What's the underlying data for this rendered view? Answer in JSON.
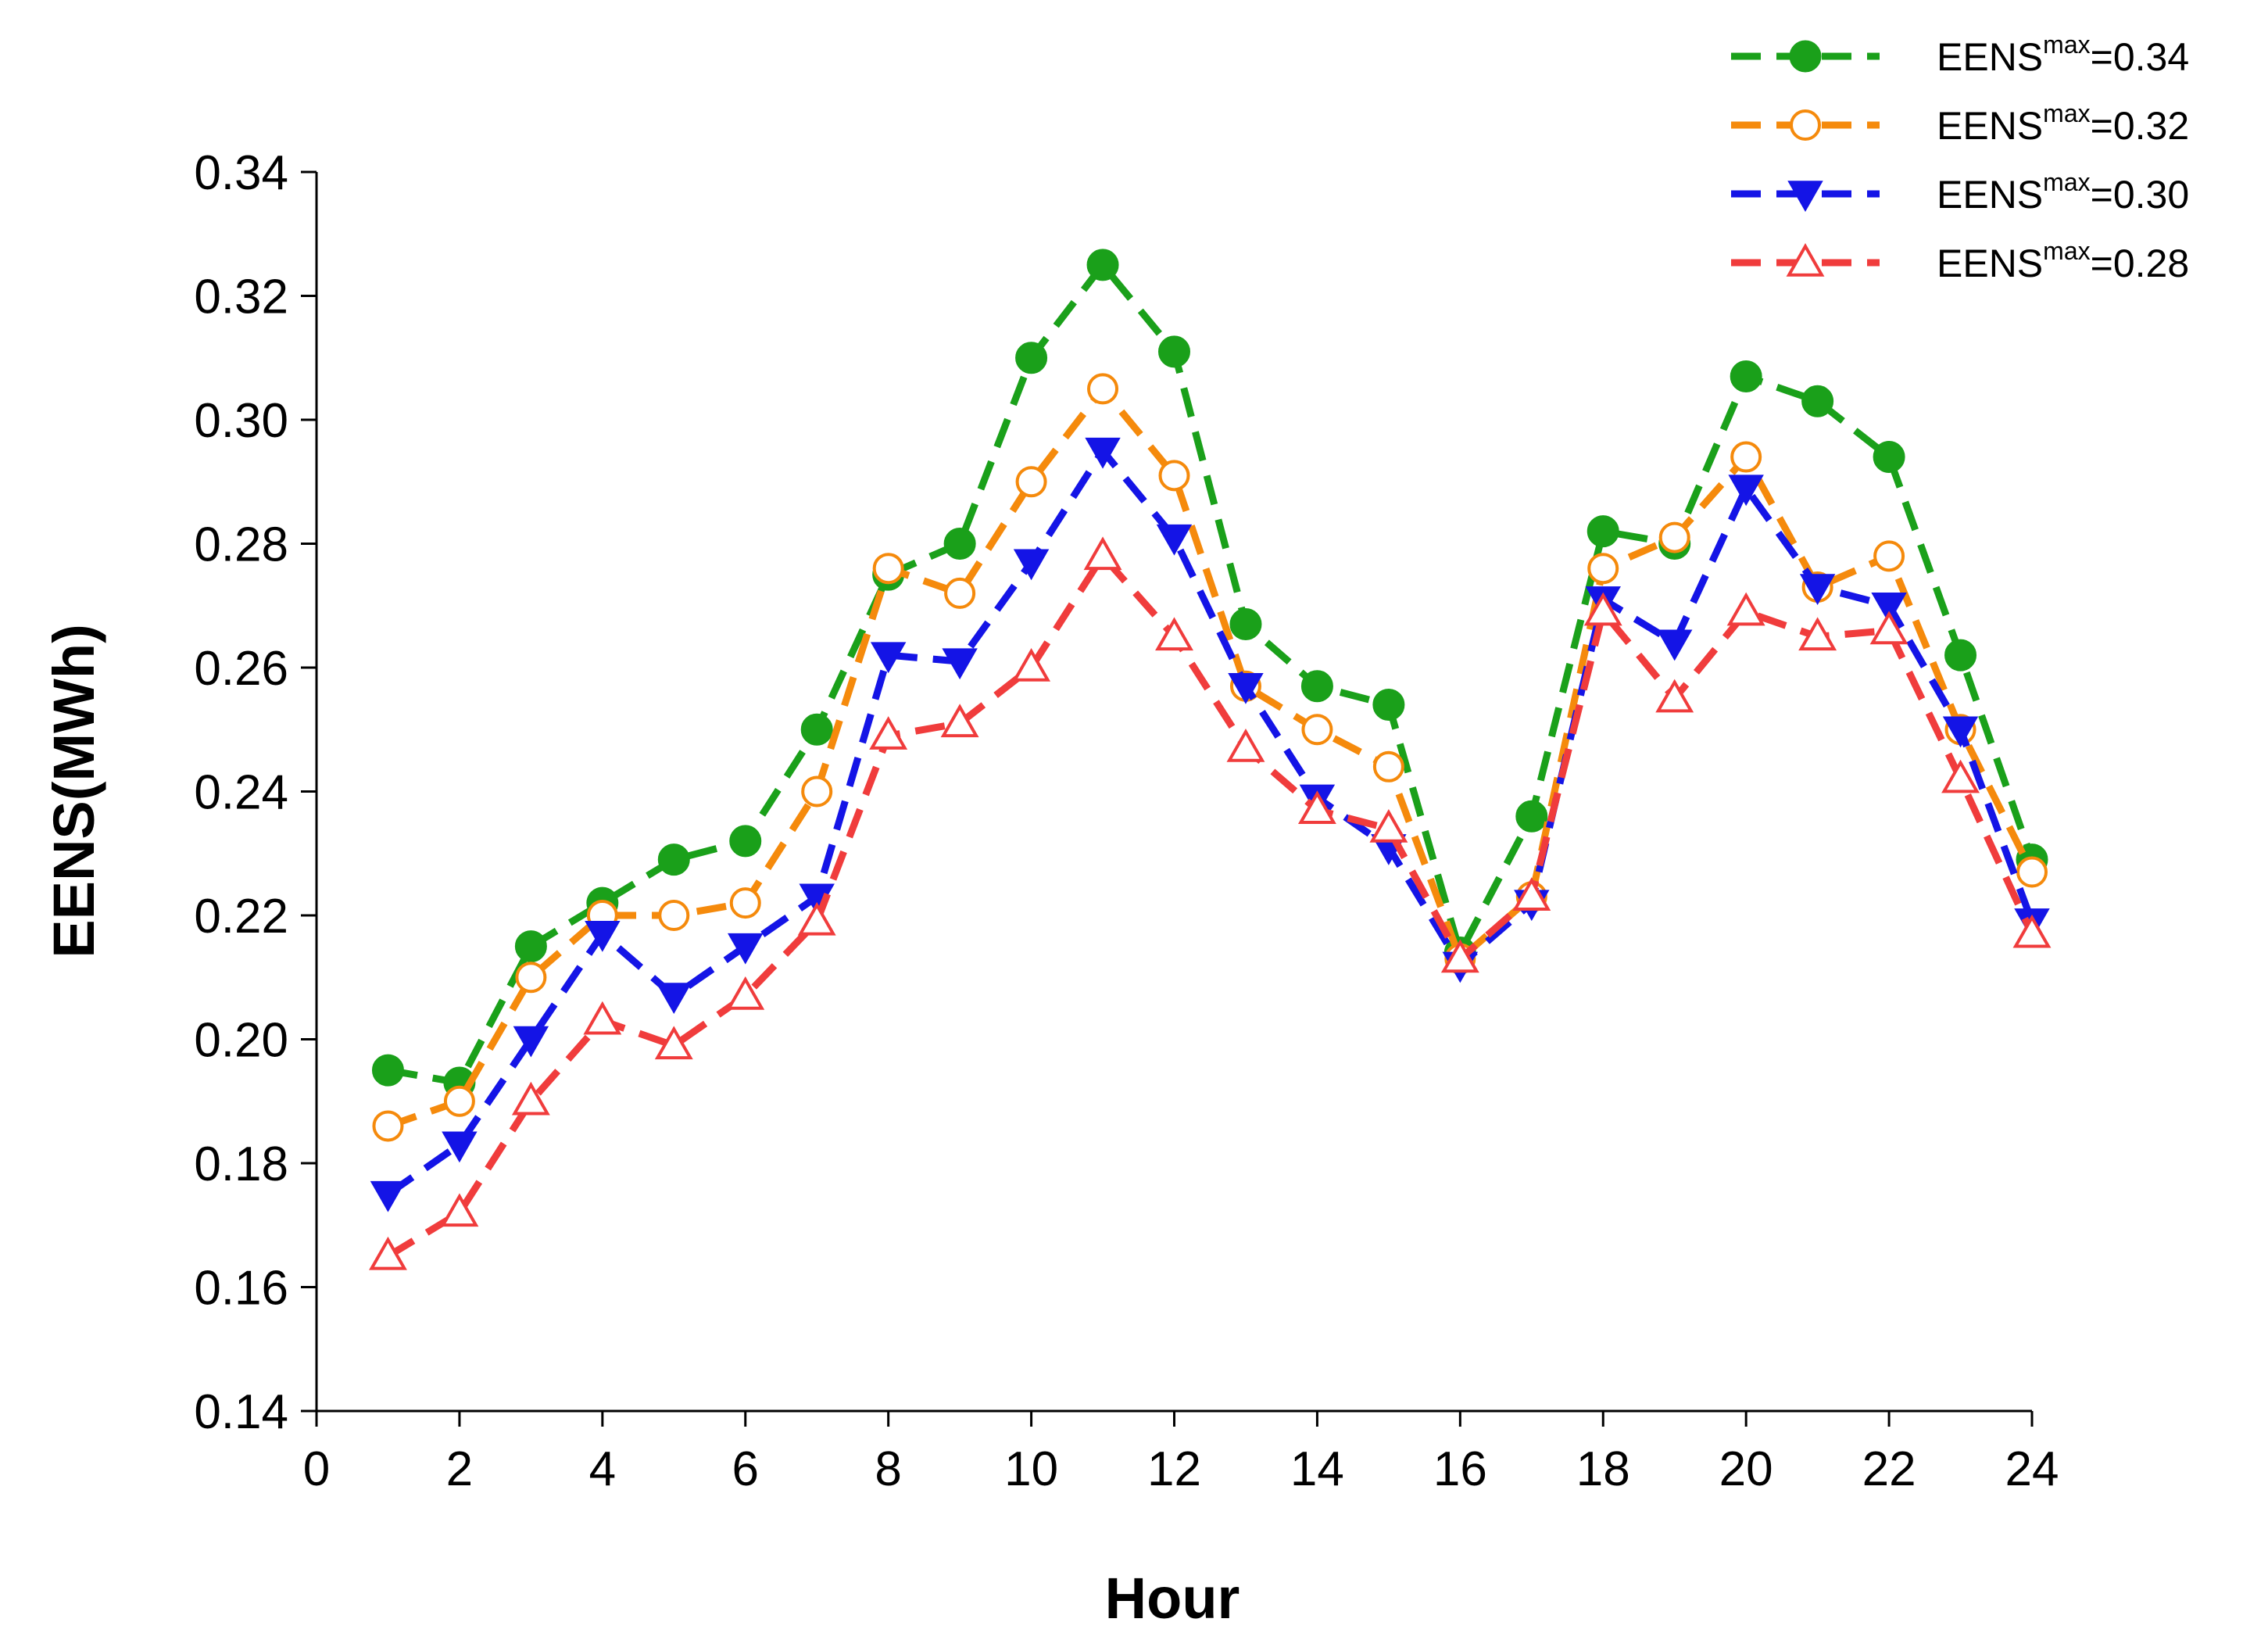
{
  "chart_data": {
    "type": "line",
    "title": "",
    "xlabel": "Hour",
    "ylabel": "EENS(MWh)",
    "xlim": [
      0,
      24
    ],
    "ylim": [
      0.14,
      0.34
    ],
    "xticks": [
      "0",
      "2",
      "4",
      "6",
      "8",
      "10",
      "12",
      "14",
      "16",
      "18",
      "20",
      "22",
      "24"
    ],
    "yticks": [
      "0.14",
      "0.16",
      "0.18",
      "0.20",
      "0.22",
      "0.24",
      "0.26",
      "0.28",
      "0.30",
      "0.32",
      "0.34"
    ],
    "grid": false,
    "legend_position": "top-right",
    "x": [
      1,
      2,
      3,
      4,
      5,
      6,
      7,
      8,
      9,
      10,
      11,
      12,
      13,
      14,
      15,
      16,
      17,
      18,
      19,
      20,
      21,
      22,
      23,
      24
    ],
    "series": [
      {
        "name": "EENS max =0.34",
        "legend_base": "EENS",
        "legend_sup": "max",
        "legend_value": "=0.34",
        "color": "#1aa01a",
        "marker": "filled-circle",
        "values": [
          0.195,
          0.193,
          0.215,
          0.222,
          0.229,
          0.232,
          0.25,
          0.275,
          0.28,
          0.31,
          0.325,
          0.311,
          0.267,
          0.257,
          0.254,
          0.214,
          0.236,
          0.282,
          0.28,
          0.307,
          0.303,
          0.294,
          0.262,
          0.229
        ]
      },
      {
        "name": "EENS max =0.32",
        "legend_base": "EENS",
        "legend_sup": "max",
        "legend_value": "=0.32",
        "color": "#f58a0c",
        "marker": "open-circle",
        "values": [
          0.186,
          0.19,
          0.21,
          0.22,
          0.22,
          0.222,
          0.24,
          0.276,
          0.272,
          0.29,
          0.305,
          0.291,
          0.257,
          0.25,
          0.244,
          0.213,
          0.223,
          0.276,
          0.281,
          0.294,
          0.273,
          0.278,
          0.25,
          0.227
        ]
      },
      {
        "name": "EENS max =0.30",
        "legend_base": "EENS",
        "legend_sup": "max",
        "legend_value": "=0.30",
        "color": "#1414e6",
        "marker": "filled-triangle-down",
        "values": [
          0.175,
          0.183,
          0.2,
          0.217,
          0.207,
          0.215,
          0.223,
          0.262,
          0.261,
          0.277,
          0.295,
          0.281,
          0.257,
          0.239,
          0.231,
          0.212,
          0.222,
          0.271,
          0.264,
          0.289,
          0.273,
          0.27,
          0.25,
          0.219
        ]
      },
      {
        "name": "EENS max =0.28",
        "legend_base": "EENS",
        "legend_sup": "max",
        "legend_value": "=0.28",
        "color": "#f03c3c",
        "marker": "open-triangle-up",
        "values": [
          0.165,
          0.172,
          0.19,
          0.203,
          0.199,
          0.207,
          0.219,
          0.249,
          0.251,
          0.26,
          0.278,
          0.265,
          0.247,
          0.237,
          0.234,
          0.213,
          0.223,
          0.269,
          0.255,
          0.269,
          0.265,
          0.266,
          0.242,
          0.217
        ]
      }
    ]
  }
}
